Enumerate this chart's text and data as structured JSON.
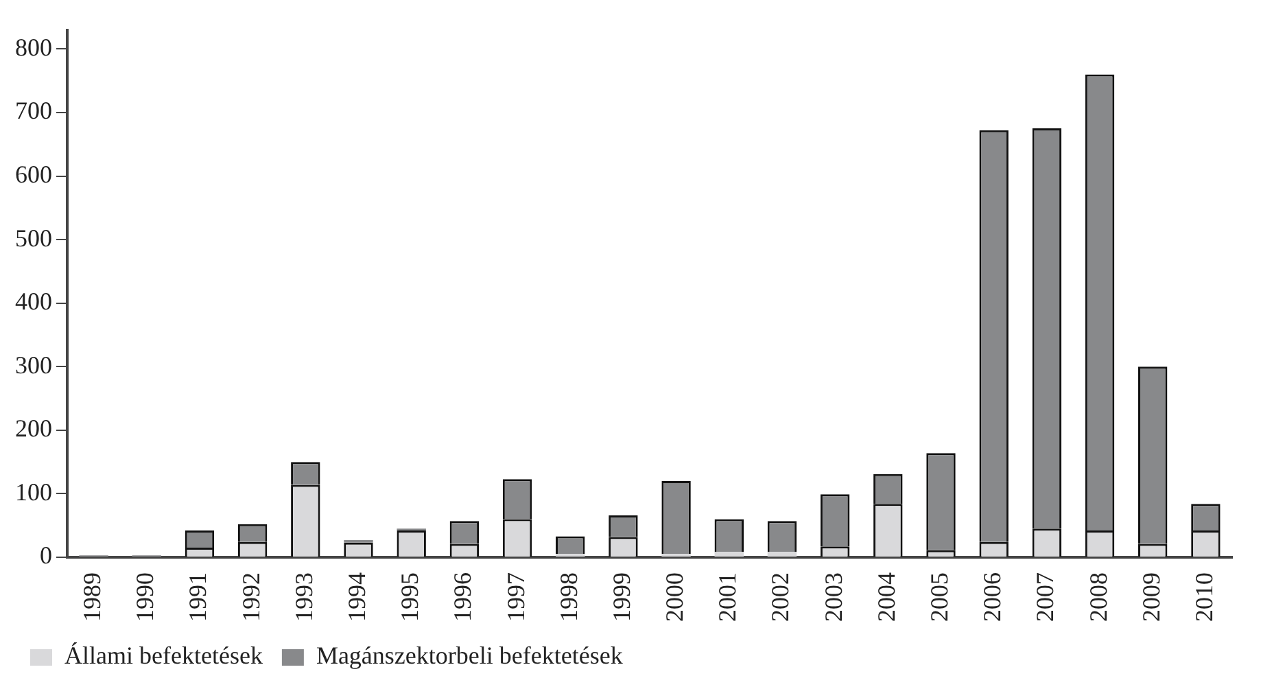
{
  "chart_data": {
    "type": "bar",
    "stacked": true,
    "categories": [
      "1989",
      "1990",
      "1991",
      "1992",
      "1993",
      "1994",
      "1995",
      "1996",
      "1997",
      "1998",
      "1999",
      "2000",
      "2001",
      "2002",
      "2003",
      "2004",
      "2005",
      "2006",
      "2007",
      "2008",
      "2009",
      "2010"
    ],
    "series": [
      {
        "name": "Állami befektetések",
        "color": "#d9d9db",
        "values": [
          1,
          1,
          15,
          24,
          114,
          23,
          42,
          21,
          60,
          5,
          32,
          5,
          8,
          8,
          17,
          84,
          11,
          24,
          45,
          42,
          21,
          42
        ]
      },
      {
        "name": "Magánszektorbeli befektetések",
        "color": "#88898b",
        "values": [
          2,
          2,
          27,
          28,
          36,
          4,
          3,
          36,
          63,
          28,
          34,
          115,
          52,
          49,
          82,
          47,
          153,
          648,
          630,
          718,
          279,
          42
        ]
      }
    ],
    "ylim": [
      0,
      830
    ],
    "yticks": [
      0,
      100,
      200,
      300,
      400,
      500,
      600,
      700,
      800
    ],
    "grid": false,
    "legend": "bottom"
  }
}
